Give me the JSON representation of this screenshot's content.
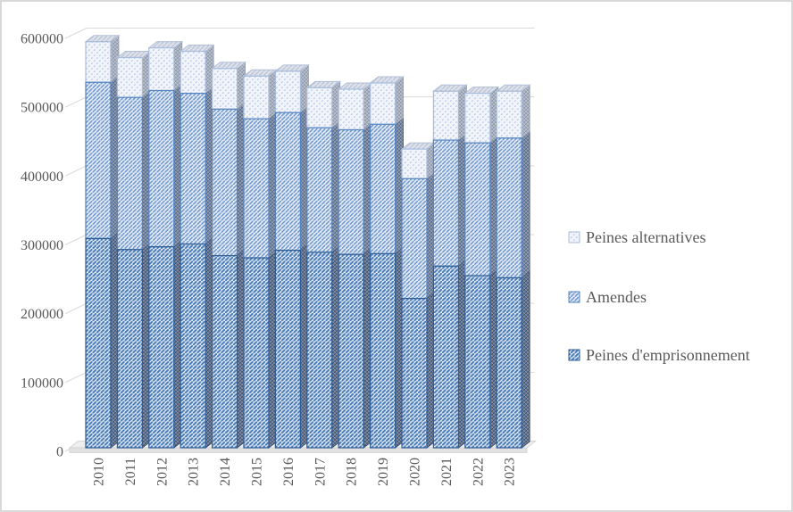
{
  "chart_data": {
    "type": "bar",
    "variant": "3d-stacked",
    "stacked": true,
    "title": "",
    "xlabel": "",
    "ylabel": "",
    "categories": [
      "2010",
      "2011",
      "2012",
      "2013",
      "2014",
      "2015",
      "2016",
      "2017",
      "2018",
      "2019",
      "2020",
      "2021",
      "2022",
      "2023"
    ],
    "series": [
      {
        "name": "Peines d'emprisonnement",
        "values": [
          304000,
          288000,
          292000,
          296000,
          279000,
          276000,
          287000,
          284000,
          281000,
          282000,
          217000,
          264000,
          250000,
          247000
        ],
        "color": "#4a7cb8"
      },
      {
        "name": "Amendes",
        "values": [
          227000,
          221000,
          227000,
          219000,
          213000,
          202000,
          200000,
          181000,
          181000,
          188000,
          174000,
          183000,
          193000,
          203000
        ],
        "color": "#6e96cc"
      },
      {
        "name": "Peines alternatives",
        "values": [
          59000,
          58000,
          62000,
          61000,
          59000,
          62000,
          60000,
          58000,
          59000,
          60000,
          43000,
          71000,
          72000,
          68000
        ],
        "color": "#bac9e5"
      }
    ],
    "ylim": [
      0,
      600000
    ],
    "ytick_step": 100000,
    "yticks": [
      "0",
      "100000",
      "200000",
      "300000",
      "400000",
      "500000",
      "600000"
    ],
    "grid": true,
    "gridline_color": "#d9d9d9",
    "axis_text_color": "#595959",
    "legend_position": "right",
    "legend_order_top_to_bottom": [
      "Peines alternatives",
      "Amendes",
      "Peines d'emprisonnement"
    ]
  }
}
